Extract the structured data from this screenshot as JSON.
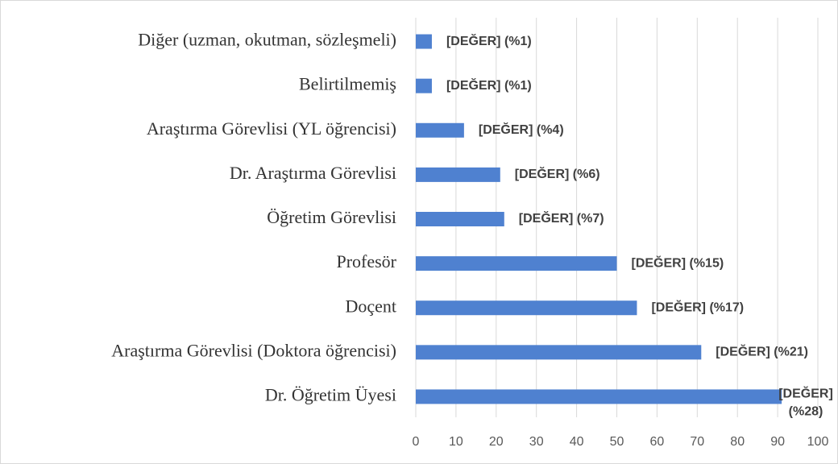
{
  "chart_data": {
    "type": "hbar",
    "categories": [
      "Diğer (uzman, okutman, sözleşmeli)",
      "Belirtilmemiş",
      "Araştırma Görevlisi (YL öğrencisi)",
      "Dr. Araştırma Görevlisi",
      "Öğretim Görevlisi",
      "Profesör",
      "Doçent",
      "Araştırma Görevlisi (Doktora öğrencisi)",
      "Dr. Öğretim Üyesi"
    ],
    "values": [
      4,
      4,
      12,
      21,
      22,
      50,
      55,
      71,
      91
    ],
    "value_labels": [
      "[DEĞER] (%1)",
      "[DEĞER] (%1)",
      "[DEĞER] (%4)",
      "[DEĞER] (%6)",
      "[DEĞER] (%7)",
      "[DEĞER] (%15)",
      "[DEĞER] (%17)",
      "[DEĞER] (%21)",
      "[DEĞER] (%28)"
    ],
    "color": "#4f81d0",
    "xlim": [
      0,
      100
    ],
    "xticks": [
      0,
      10,
      20,
      30,
      40,
      50,
      60,
      70,
      80,
      90,
      100
    ],
    "grid": true
  }
}
